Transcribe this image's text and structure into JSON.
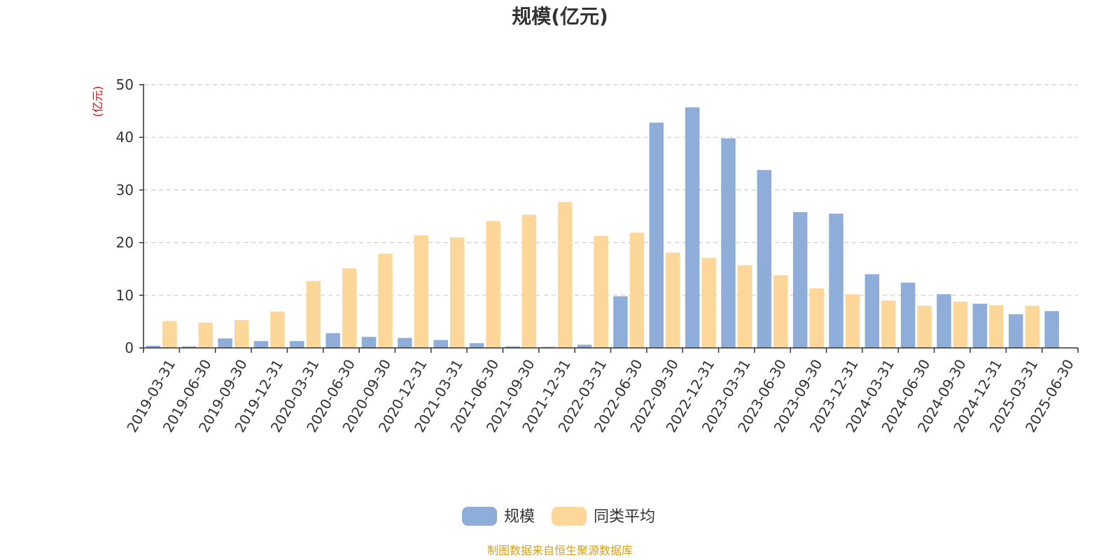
{
  "chart_data": {
    "type": "bar",
    "title": "规模(亿元)",
    "ylabel": "(亿元)",
    "xlabel": "",
    "ylim": [
      0,
      50
    ],
    "yticks": [
      0,
      10,
      20,
      30,
      40,
      50
    ],
    "grid": true,
    "legend_position": "bottom-center",
    "categories": [
      "2019-03-31",
      "2019-06-30",
      "2019-09-30",
      "2019-12-31",
      "2020-03-31",
      "2020-06-30",
      "2020-09-30",
      "2020-12-31",
      "2021-03-31",
      "2021-06-30",
      "2021-09-30",
      "2021-12-31",
      "2022-03-31",
      "2022-06-30",
      "2022-09-30",
      "2022-12-31",
      "2023-03-31",
      "2023-06-30",
      "2023-09-30",
      "2023-12-31",
      "2024-03-31",
      "2024-06-30",
      "2024-09-30",
      "2024-12-31",
      "2025-03-31",
      "2025-06-30"
    ],
    "series": [
      {
        "name": "规模",
        "color": "#8eadd9",
        "values": [
          0.4,
          0.3,
          1.8,
          1.3,
          1.3,
          2.8,
          2.1,
          1.9,
          1.5,
          0.9,
          0.3,
          0.2,
          0.6,
          9.8,
          42.8,
          45.7,
          39.8,
          33.8,
          25.8,
          25.5,
          14.0,
          12.4,
          10.2,
          8.4,
          6.4,
          7.0
        ]
      },
      {
        "name": "同类平均",
        "color": "#fdd79a",
        "values": [
          5.1,
          4.8,
          5.3,
          6.9,
          12.7,
          15.1,
          17.9,
          21.4,
          21.0,
          24.1,
          25.3,
          27.7,
          21.3,
          21.9,
          18.1,
          17.1,
          15.7,
          13.8,
          11.3,
          10.2,
          9.0,
          8.0,
          8.8,
          8.1,
          8.0,
          null
        ]
      }
    ]
  },
  "source_text": "制图数据来自恒生聚源数据库",
  "colors": {
    "axis": "#333333",
    "grid": "#cccccc",
    "unit_label": "#ee0000",
    "source_text": "#d4a017"
  }
}
